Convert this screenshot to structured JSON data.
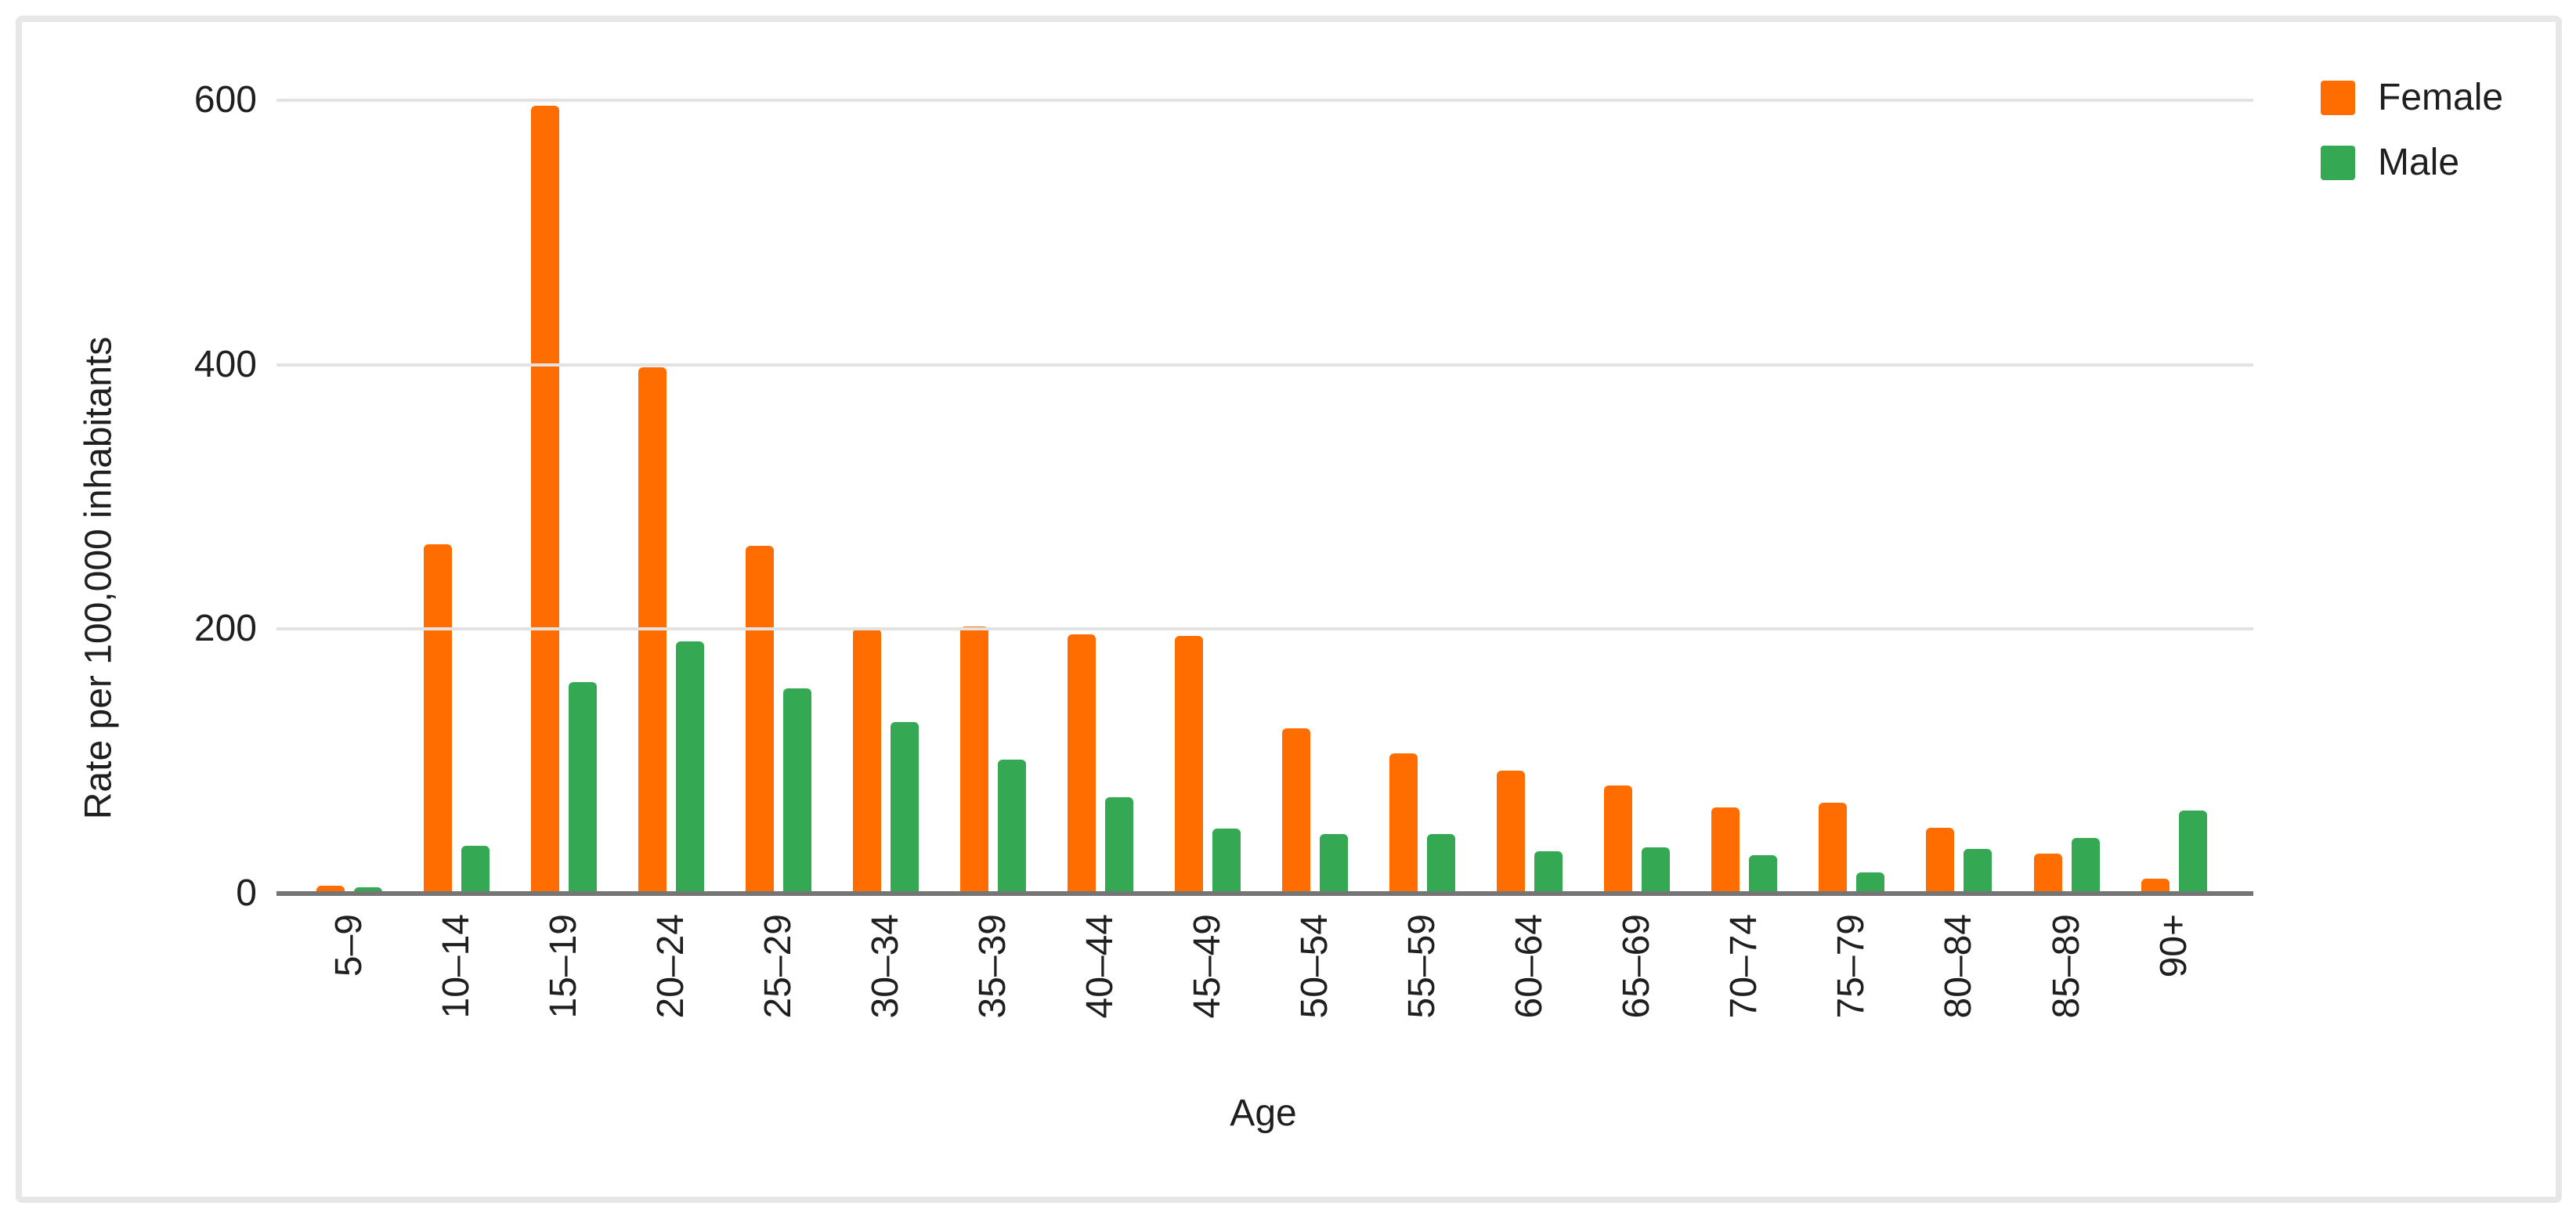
{
  "chart_data": {
    "type": "bar",
    "title": "",
    "xlabel": "Age",
    "ylabel": "Rate per 100,000 inhabitants",
    "categories": [
      "5–9",
      "10–14",
      "15–19",
      "20–24",
      "25–29",
      "30–34",
      "35–39",
      "40–44",
      "45–49",
      "50–54",
      "55–59",
      "60–64",
      "65–69",
      "70–74",
      "75–79",
      "80–84",
      "85–89",
      "90+"
    ],
    "series": [
      {
        "name": "Female",
        "color": "#FF6D01",
        "values": [
          6,
          264,
          596,
          398,
          263,
          200,
          202,
          196,
          195,
          125,
          106,
          93,
          82,
          65,
          69,
          50,
          30,
          11
        ]
      },
      {
        "name": "Male",
        "color": "#34A853",
        "values": [
          5,
          36,
          160,
          191,
          155,
          130,
          101,
          73,
          49,
          45,
          45,
          32,
          35,
          29,
          16,
          34,
          42,
          63
        ]
      }
    ],
    "ylim": [
      0,
      600
    ],
    "yticks": [
      0,
      200,
      400,
      600
    ],
    "grid": "horizontal",
    "legend_position": "top-right"
  },
  "colors": {
    "axis_line": "#757575",
    "gridline": "#e2e2e2",
    "text": "#1f1f1f",
    "card_border": "#e7e7e7",
    "background": "#ffffff"
  }
}
